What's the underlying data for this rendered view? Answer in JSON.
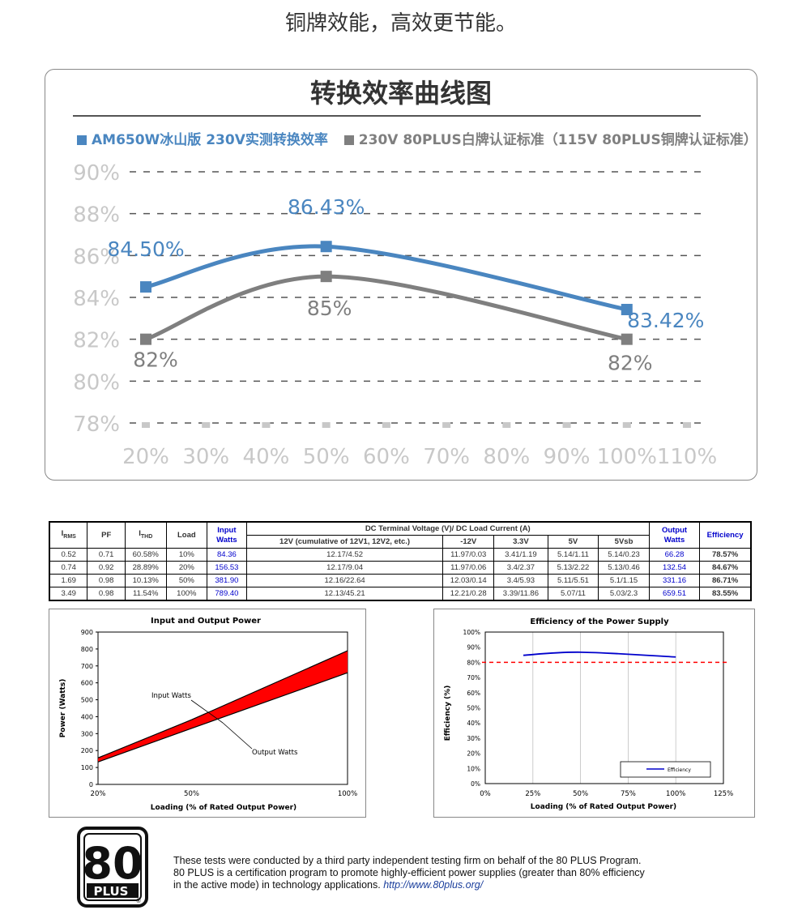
{
  "tagline": "铜牌效能，高效更节能。",
  "colors": {
    "blue": "#4a86c0",
    "gray": "#7f7f7f",
    "axis_label": "#c8c8c8",
    "grid": "#555555",
    "red": "#ff0000",
    "dark_blue": "#0000cc"
  },
  "chart_data": [
    {
      "type": "line",
      "title": "转换效率曲线图",
      "x": [
        "20%",
        "30%",
        "40%",
        "50%",
        "60%",
        "70%",
        "80%",
        "90%",
        "100%",
        "110%"
      ],
      "y_ticks": [
        "78%",
        "80%",
        "82%",
        "84%",
        "86%",
        "88%",
        "90%"
      ],
      "ylim": [
        78,
        90
      ],
      "grid": true,
      "legend_position": "top-left",
      "series": [
        {
          "name": "AM650W冰山版 230V实测转换效率",
          "color": "#4a86c0",
          "points": [
            {
              "x": 20,
              "y": 84.5
            },
            {
              "x": 50,
              "y": 86.43
            },
            {
              "x": 100,
              "y": 83.42
            }
          ],
          "labels": [
            "84.50%",
            "86.43%",
            "83.42%"
          ]
        },
        {
          "name": "230V 80PLUS白牌认证标准（115V 80PLUS铜牌认证标准）",
          "color": "#7f7f7f",
          "points": [
            {
              "x": 20,
              "y": 82
            },
            {
              "x": 50,
              "y": 85
            },
            {
              "x": 100,
              "y": 82
            }
          ],
          "labels": [
            "82%",
            "85%",
            "82%"
          ]
        }
      ]
    },
    {
      "type": "area",
      "title": "Input and Output Power",
      "xlabel": "Loading (% of Rated Output Power)",
      "ylabel": "Power (Watts)",
      "x": [
        20,
        50,
        100
      ],
      "x_ticks": [
        "20%",
        "50%",
        "100%"
      ],
      "y_ticks": [
        "0",
        "100",
        "200",
        "300",
        "400",
        "500",
        "600",
        "700",
        "800",
        "900"
      ],
      "ylim": [
        0,
        900
      ],
      "series": [
        {
          "name": "Input Watts",
          "values": [
            156.53,
            381.9,
            789.4
          ]
        },
        {
          "name": "Output Watts",
          "values": [
            132.54,
            331.16,
            659.51
          ]
        }
      ]
    },
    {
      "type": "line",
      "title": "Efficiency of the Power Supply",
      "xlabel": "Loading (% of Rated Output Power)",
      "ylabel": "Efficiency (%)",
      "x_ticks": [
        "0%",
        "25%",
        "50%",
        "75%",
        "100%",
        "125%"
      ],
      "y_ticks": [
        "0%",
        "10%",
        "20%",
        "30%",
        "40%",
        "50%",
        "60%",
        "70%",
        "80%",
        "90%",
        "100%"
      ],
      "xlim": [
        0,
        125
      ],
      "ylim": [
        0,
        100
      ],
      "threshold": 80,
      "legend_position": "bottom-right",
      "series": [
        {
          "name": "Efficiency",
          "points": [
            {
              "x": 20,
              "y": 84.67
            },
            {
              "x": 50,
              "y": 86.71
            },
            {
              "x": 100,
              "y": 83.55
            }
          ]
        }
      ]
    }
  ],
  "table": {
    "header_top": {
      "irms": "I",
      "irms_sub": "RMS",
      "pf": "PF",
      "ithd": "I",
      "ithd_sub": "THD",
      "load": "Load",
      "input": "Input Watts",
      "dc": "DC Terminal Voltage (V)/ DC Load Current (A)",
      "output": "Output Watts",
      "eff": "Efficiency"
    },
    "header_sub": [
      "12V (cumulative of 12V1, 12V2, etc.)",
      "-12V",
      "3.3V",
      "5V",
      "5Vsb"
    ],
    "rows": [
      [
        "0.52",
        "0.71",
        "60.58%",
        "10%",
        "84.36",
        "12.17/4.52",
        "11.97/0.03",
        "3.41/1.19",
        "5.14/1.11",
        "5.14/0.23",
        "66.28",
        "78.57%"
      ],
      [
        "0.74",
        "0.92",
        "28.89%",
        "20%",
        "156.53",
        "12.17/9.04",
        "11.97/0.06",
        "3.4/2.37",
        "5.13/2.22",
        "5.13/0.46",
        "132.54",
        "84.67%"
      ],
      [
        "1.69",
        "0.98",
        "10.13%",
        "50%",
        "381.90",
        "12.16/22.64",
        "12.03/0.14",
        "3.4/5.93",
        "5.11/5.51",
        "5.1/1.15",
        "331.16",
        "86.71%"
      ],
      [
        "3.49",
        "0.98",
        "11.54%",
        "100%",
        "789.40",
        "12.13/45.21",
        "12.21/0.28",
        "3.39/11.86",
        "5.07/11",
        "5.03/2.3",
        "659.51",
        "83.55%"
      ]
    ]
  },
  "logo": {
    "number": "80",
    "word": "PLUS",
    "mark": "®"
  },
  "note": {
    "line1": "These tests were conducted by a third party independent testing firm on behalf of the 80 PLUS Program.",
    "line2": "80 PLUS is a certification program to promote highly-efficient power supplies (greater than 80% efficiency",
    "line3": "in the active mode) in technology applications.",
    "link": "http://www.80plus.org/"
  }
}
